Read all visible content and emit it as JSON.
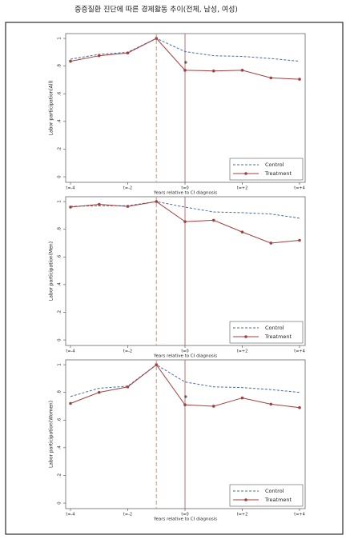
{
  "title": "중증질환 진단에 따른 경제활동 추이(전체, 남성, 여성)",
  "chart_data": [
    {
      "type": "line",
      "x_label": "Years relative to CI diagnosis",
      "y_label": "Labor participation(All)",
      "categories": [
        "t=-4",
        null,
        "t=-2",
        null,
        "t=0",
        null,
        "t=+2",
        null,
        "t=+4"
      ],
      "series": [
        {
          "name": "Control",
          "color": "#4a6a9a",
          "style": "dashed",
          "values": [
            0.85,
            0.885,
            0.9,
            1.0,
            0.905,
            0.875,
            0.87,
            0.855,
            0.835
          ]
        },
        {
          "name": "Treatment",
          "color": "#a0403f",
          "style": "solid-marker",
          "values": [
            0.835,
            0.875,
            0.895,
            1.0,
            0.77,
            0.765,
            0.77,
            0.715,
            0.705
          ]
        }
      ],
      "ylim": [
        -0.04,
        1.035
      ],
      "yticks": [
        0,
        {
          "value": 0.2,
          "label": ".2"
        },
        {
          "value": 0.4,
          "label": ".4"
        },
        {
          "value": 0.6,
          "label": ".6"
        },
        {
          "value": 0.8,
          "label": ".8"
        },
        1
      ],
      "legend": "lower right"
    },
    {
      "type": "line",
      "x_label": "Years relative to CI diagnosis",
      "y_label": "Labor participation(Men)",
      "categories": [
        "t=-4",
        null,
        "t=-2",
        null,
        "t=0",
        null,
        "t=+2",
        null,
        "t=+4"
      ],
      "series": [
        {
          "name": "Control",
          "color": "#4a6a9a",
          "style": "dashed",
          "values": [
            0.965,
            0.97,
            0.97,
            1.0,
            0.96,
            0.925,
            0.92,
            0.91,
            0.88
          ]
        },
        {
          "name": "Treatment",
          "color": "#a0403f",
          "style": "solid-marker",
          "values": [
            0.96,
            0.98,
            0.965,
            1.0,
            0.855,
            0.865,
            0.78,
            0.7,
            0.72
          ]
        }
      ],
      "ylim": [
        -0.04,
        1.035
      ],
      "yticks": [
        0,
        {
          "value": 0.2,
          "label": ".2"
        },
        {
          "value": 0.4,
          "label": ".4"
        },
        {
          "value": 0.6,
          "label": ".6"
        },
        {
          "value": 0.8,
          "label": ".8"
        },
        1
      ],
      "legend": "lower right"
    },
    {
      "type": "line",
      "x_label": "Years relative to CI diagnosis",
      "y_label": "Labor participation(Women)",
      "categories": [
        "t=-4",
        null,
        "t=-2",
        null,
        "t=0",
        null,
        "t=+2",
        null,
        "t=+4"
      ],
      "series": [
        {
          "name": "Control",
          "color": "#4a6a9a",
          "style": "dashed",
          "values": [
            0.77,
            0.83,
            0.845,
            1.0,
            0.875,
            0.84,
            0.835,
            0.82,
            0.8
          ]
        },
        {
          "name": "Treatment",
          "color": "#a0403f",
          "style": "solid-marker",
          "values": [
            0.72,
            0.8,
            0.84,
            1.0,
            0.71,
            0.7,
            0.76,
            0.715,
            0.69
          ]
        }
      ],
      "ylim": [
        -0.04,
        1.035
      ],
      "yticks": [
        0,
        {
          "value": 0.2,
          "label": ".2"
        },
        {
          "value": 0.4,
          "label": ".4"
        },
        {
          "value": 0.6,
          "label": ".6"
        },
        {
          "value": 0.8,
          "label": ".8"
        },
        1
      ],
      "legend": "lower right"
    }
  ]
}
